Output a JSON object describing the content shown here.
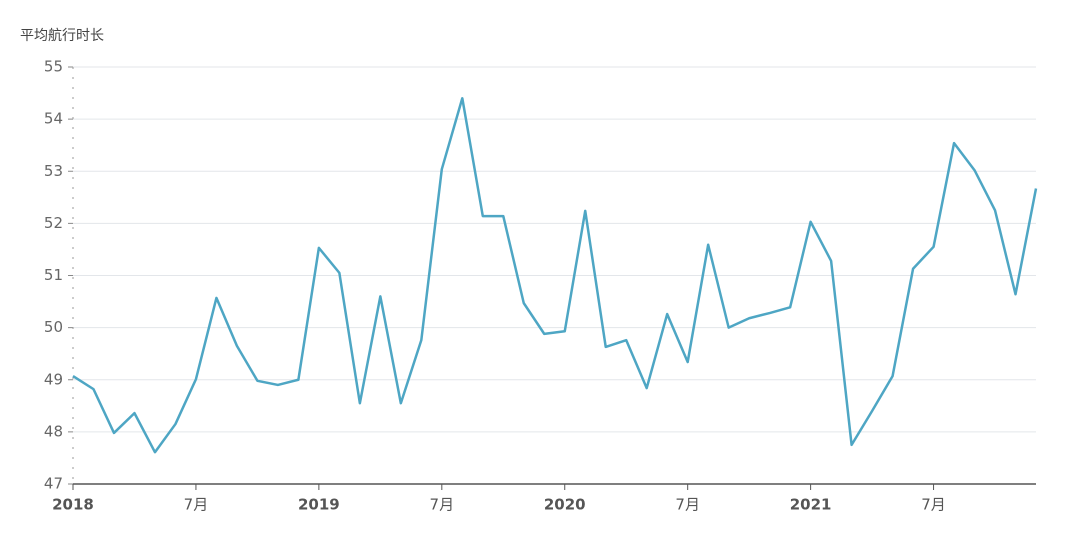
{
  "chart_data": {
    "type": "line",
    "y_label": "平均航行时长",
    "categories": [
      "2018",
      null,
      null,
      null,
      null,
      null,
      "7月",
      null,
      null,
      null,
      null,
      null,
      "2019",
      null,
      null,
      null,
      null,
      null,
      "7月",
      null,
      null,
      null,
      null,
      null,
      "2020",
      null,
      null,
      null,
      null,
      null,
      "7月",
      null,
      null,
      null,
      null,
      null,
      "2021",
      null,
      null,
      null,
      null,
      null,
      "7月",
      null,
      null,
      null,
      null,
      null
    ],
    "series": [
      {
        "name": "平均航行时长",
        "color": "#4ea6c4",
        "values": [
          49.07,
          48.82,
          47.98,
          48.36,
          47.61,
          48.15,
          49.01,
          50.57,
          49.65,
          48.98,
          48.9,
          49.0,
          51.53,
          51.05,
          48.55,
          50.6,
          48.55,
          49.76,
          53.04,
          54.4,
          52.14,
          52.14,
          50.47,
          49.88,
          49.93,
          52.24,
          49.63,
          49.76,
          48.84,
          50.26,
          49.34,
          51.59,
          50.0,
          50.18,
          50.28,
          50.39,
          52.03,
          51.28,
          47.75,
          48.4,
          49.07,
          51.13,
          51.55,
          53.54,
          53.02,
          52.25,
          50.64,
          52.67
        ]
      }
    ],
    "ylim": [
      47,
      55
    ],
    "yticks": [
      47,
      48,
      49,
      50,
      51,
      52,
      53,
      54,
      55
    ],
    "grid": true
  }
}
